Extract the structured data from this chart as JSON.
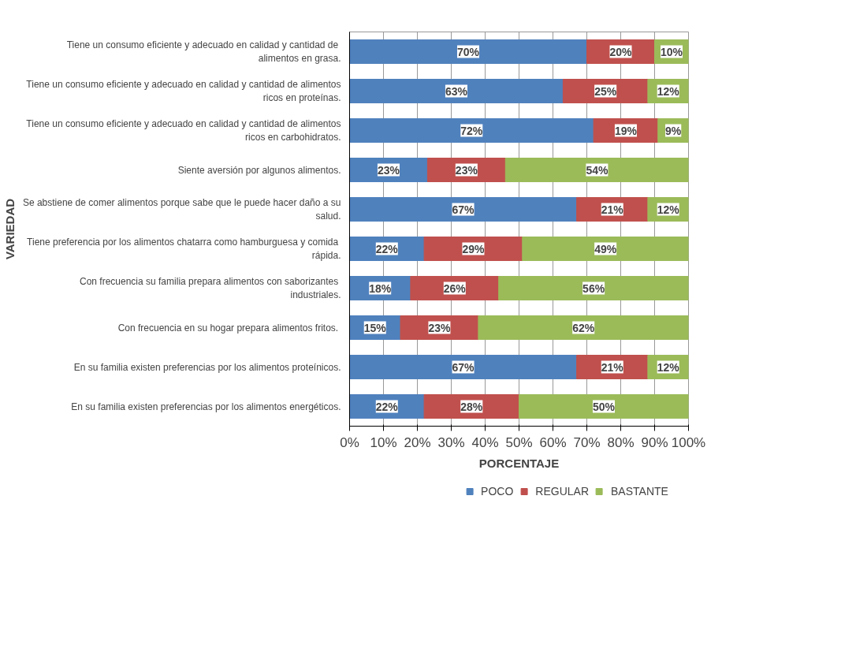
{
  "chart_data": {
    "type": "bar",
    "orientation": "horizontal",
    "stacked": true,
    "xlabel": "PORCENTAJE",
    "ylabel": "VARIEDAD",
    "categories": [
      "Tiene un consumo eficiente y  adecuado en calidad y cantidad de alimentos en grasa.",
      "Tiene un consumo eficiente y adecuado en calidad y cantidad de alimentos ricos en proteínas.",
      "Tiene un consumo eficiente y adecuado en calidad y cantidad de alimentos ricos en carbohidratos.",
      "Siente aversión por algunos alimentos.",
      "Se abstiene de comer alimentos porque sabe que le puede hacer daño a su salud.",
      "Tiene  preferencia por los alimentos chatarra como hamburguesa y comida rápida.",
      "Con frecuencia su familia prepara alimentos  con saborizantes industriales.",
      "Con frecuencia en su hogar  prepara alimentos fritos.",
      "En su familia existen preferencias por los alimentos proteínicos.",
      "En su familia existen preferencias por los alimentos energéticos."
    ],
    "series": [
      {
        "name": "POCO",
        "color": "#4f81bd",
        "values": [
          70,
          63,
          72,
          23,
          67,
          22,
          18,
          15,
          67,
          22
        ],
        "value_labels": [
          "70%",
          "63%",
          "72%",
          "23%",
          "67%",
          "22%",
          "18%",
          "15%",
          "67%",
          "22%"
        ]
      },
      {
        "name": "REGULAR",
        "color": "#c0504d",
        "values": [
          20,
          25,
          19,
          23,
          21,
          29,
          26,
          23,
          21,
          28
        ],
        "value_labels": [
          "20%",
          "25%",
          "19%",
          "23%",
          "21%",
          "29%",
          "26%",
          "23%",
          "21%",
          "28%"
        ]
      },
      {
        "name": "BASTANTE",
        "color": "#9bbb59",
        "values": [
          10,
          12,
          9,
          54,
          12,
          49,
          56,
          62,
          12,
          50
        ],
        "value_labels": [
          "10%",
          "12%",
          "9%",
          "54%",
          "12%",
          "49%",
          "56%",
          "62%",
          "12%",
          "50%"
        ]
      }
    ],
    "xlim": [
      0,
      100
    ],
    "xticks": [
      {
        "value": 0,
        "label": "0%"
      },
      {
        "value": 10,
        "label": "10%"
      },
      {
        "value": 20,
        "label": "20%"
      },
      {
        "value": 30,
        "label": "30%"
      },
      {
        "value": 40,
        "label": "40%"
      },
      {
        "value": 50,
        "label": "50%"
      },
      {
        "value": 60,
        "label": "60%"
      },
      {
        "value": 70,
        "label": "70%"
      },
      {
        "value": 80,
        "label": "80%"
      },
      {
        "value": 90,
        "label": "90%"
      },
      {
        "value": 100,
        "label": "100%"
      }
    ],
    "grid": "x",
    "legend": "bottom"
  }
}
